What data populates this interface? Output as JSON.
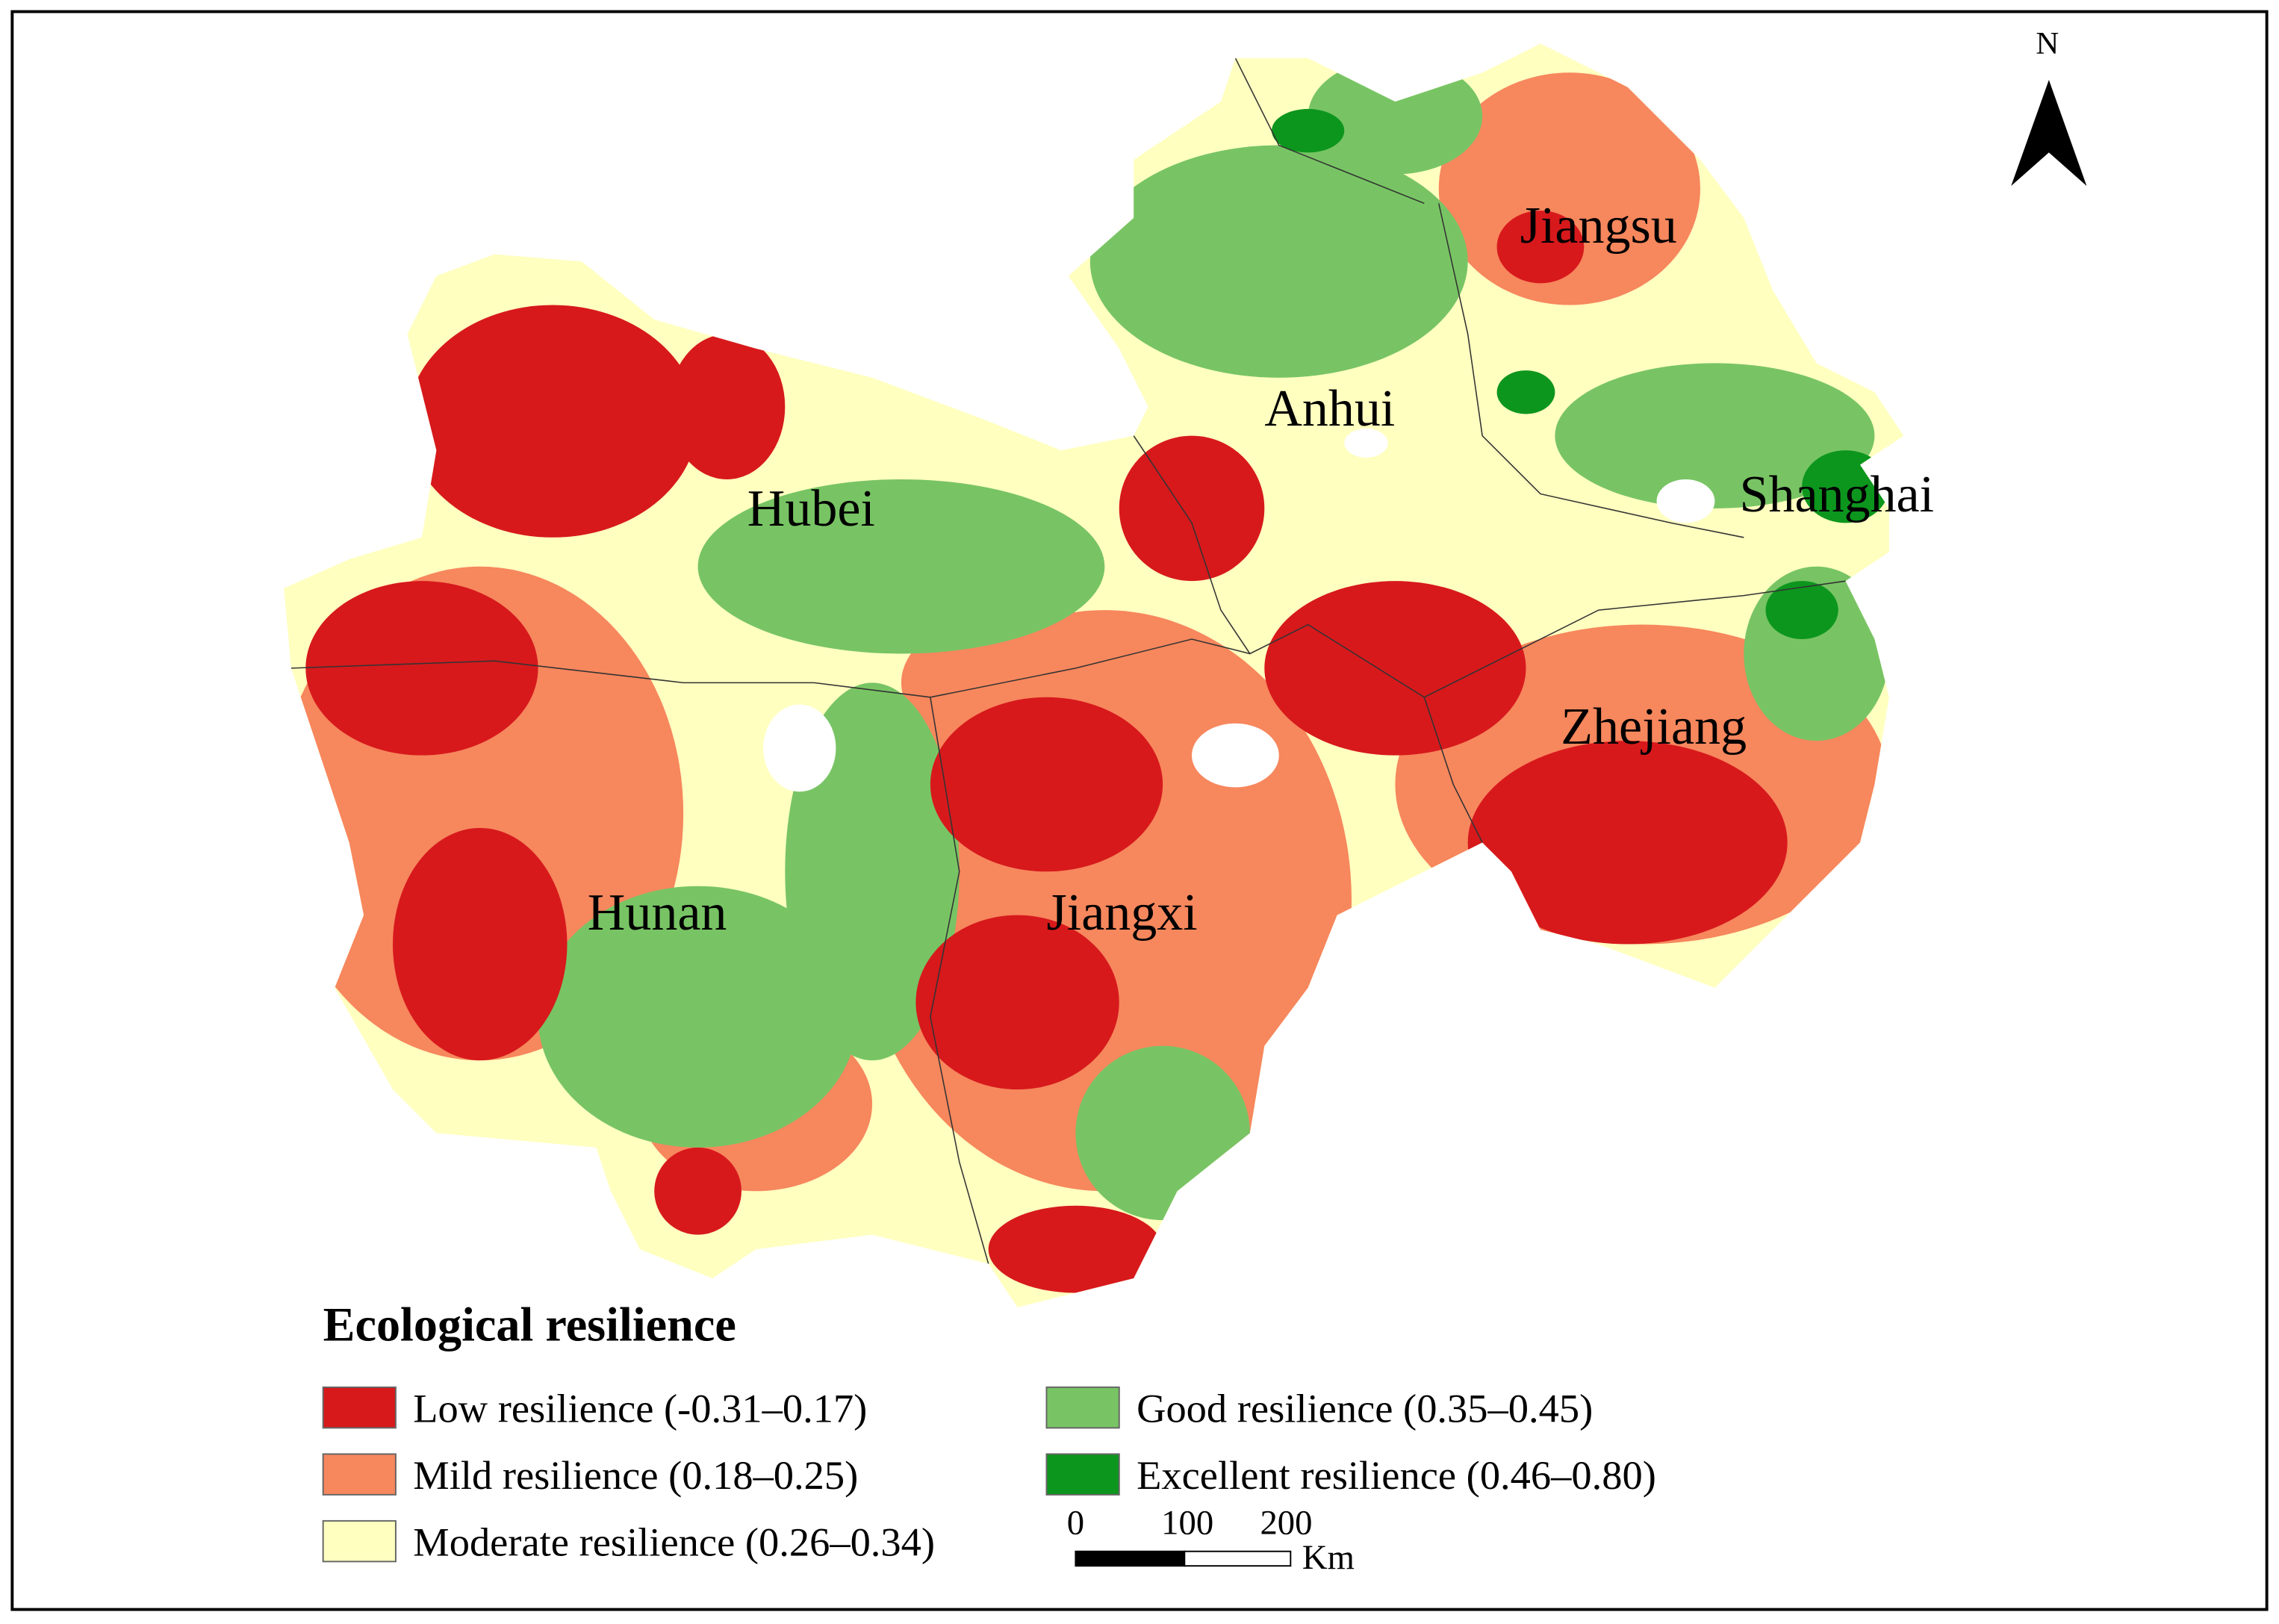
{
  "map": {
    "north_label": "N",
    "regions": [
      {
        "label": "Hubei"
      },
      {
        "label": "Anhui"
      },
      {
        "label": "Jiangsu"
      },
      {
        "label": "Shanghai"
      },
      {
        "label": "Zhejiang"
      },
      {
        "label": "Hunan"
      },
      {
        "label": "Jiangxi"
      }
    ],
    "legend": {
      "title": "Ecological resilience",
      "items": [
        {
          "label": "Low resilience (-0.31–0.17)",
          "color": "#d7191c"
        },
        {
          "label": "Mild resilience (0.18–0.25)",
          "color": "#f7875d"
        },
        {
          "label": "Moderate resilience (0.26–0.34)",
          "color": "#ffffc0"
        },
        {
          "label": "Good resilience (0.35–0.45)",
          "color": "#78c464"
        },
        {
          "label": "Excellent resilience (0.46–0.80)",
          "color": "#0d961e"
        }
      ]
    },
    "scale_bar": {
      "labels": [
        "0",
        "100",
        "200"
      ],
      "unit": "Km"
    }
  }
}
